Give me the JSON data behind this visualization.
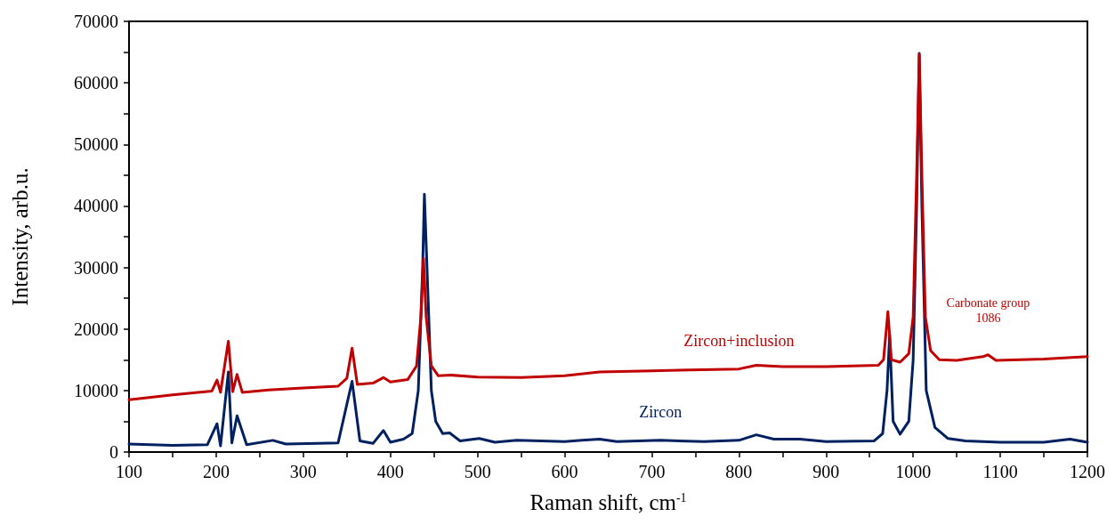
{
  "chart_data": {
    "type": "line",
    "xlabel": "Raman shift, cm$^{-1}$",
    "ylabel": "Intensity, arb.u.",
    "xlim": [
      100,
      1200
    ],
    "ylim": [
      0,
      70000
    ],
    "xticks": [
      100,
      {
        "value": 150,
        "label": null
      },
      200,
      {
        "value": 250,
        "label": null
      },
      300,
      {
        "value": 350,
        "label": null
      },
      400,
      {
        "value": 450,
        "label": null
      },
      500,
      {
        "value": 550,
        "label": null
      },
      600,
      {
        "value": 650,
        "label": null
      },
      700,
      {
        "value": 750,
        "label": null
      },
      800,
      {
        "value": 850,
        "label": null
      },
      900,
      {
        "value": 950,
        "label": null
      },
      1000,
      {
        "value": 1050,
        "label": null
      },
      1100,
      {
        "value": 1150,
        "label": null
      },
      1200
    ],
    "yticks": [
      0,
      {
        "value": 5000,
        "label": null
      },
      10000,
      {
        "value": 15000,
        "label": null
      },
      20000,
      {
        "value": 25000,
        "label": null
      },
      30000,
      {
        "value": 35000,
        "label": null
      },
      40000,
      {
        "value": 45000,
        "label": null
      },
      50000,
      {
        "value": 55000,
        "label": null
      },
      60000,
      {
        "value": 65000,
        "label": null
      },
      70000
    ],
    "grid": false,
    "legend": false,
    "marker": "none",
    "line_style": "solid",
    "annotations": [
      {
        "text": "Carbonate group\n1086",
        "x": 1086,
        "y": 15800
      }
    ],
    "series": [
      {
        "name": "Zircon",
        "color": "#002060",
        "x": [
          100,
          150,
          190,
          201,
          205,
          214,
          218,
          224,
          235,
          265,
          280,
          340,
          356,
          365,
          380,
          392,
          400,
          415,
          425,
          432,
          437,
          439,
          442,
          447,
          452,
          460,
          468,
          480,
          502,
          520,
          545,
          600,
          620,
          640,
          660,
          710,
          760,
          800,
          820,
          840,
          870,
          900,
          955,
          965,
          970,
          973,
          977,
          985,
          995,
          1000,
          1004,
          1007,
          1010,
          1015,
          1025,
          1040,
          1060,
          1100,
          1150,
          1180,
          1200
        ],
        "values": [
          1300,
          1100,
          1200,
          4600,
          1000,
          13000,
          1500,
          5900,
          1200,
          1900,
          1300,
          1500,
          11500,
          1800,
          1400,
          3500,
          1600,
          2100,
          3000,
          10000,
          30000,
          41900,
          30000,
          10000,
          5000,
          3000,
          3100,
          1800,
          2200,
          1600,
          1900,
          1700,
          1900,
          2100,
          1700,
          1900,
          1700,
          1900,
          2800,
          2100,
          2100,
          1700,
          1800,
          3000,
          10000,
          19000,
          5000,
          2900,
          5000,
          15000,
          40000,
          64800,
          40000,
          10000,
          4000,
          2200,
          1800,
          1600,
          1600,
          2100,
          1600
        ]
      },
      {
        "name": "Zircon+inclusion",
        "color": "#c00000",
        "x": [
          100,
          150,
          195,
          201,
          205,
          214,
          219,
          224,
          230,
          260,
          300,
          340,
          350,
          356,
          362,
          380,
          392,
          400,
          420,
          430,
          435,
          438,
          441,
          447,
          455,
          470,
          500,
          550,
          600,
          640,
          700,
          800,
          820,
          850,
          900,
          960,
          966,
          971,
          975,
          985,
          995,
          1000,
          1004,
          1007,
          1010,
          1014,
          1020,
          1030,
          1050,
          1080,
          1086,
          1095,
          1150,
          1200
        ],
        "values": [
          8500,
          9300,
          9900,
          11700,
          9700,
          18000,
          9800,
          12600,
          9700,
          10100,
          10400,
          10700,
          12000,
          16900,
          11000,
          11200,
          12100,
          11400,
          11800,
          14000,
          22000,
          31500,
          22000,
          14000,
          12400,
          12500,
          12200,
          12100,
          12400,
          13000,
          13200,
          13500,
          14100,
          13900,
          13900,
          14100,
          15000,
          22800,
          15000,
          14600,
          16000,
          22000,
          45000,
          64600,
          45000,
          22000,
          16500,
          15000,
          14900,
          15500,
          15800,
          14900,
          15100,
          15500
        ]
      }
    ]
  }
}
